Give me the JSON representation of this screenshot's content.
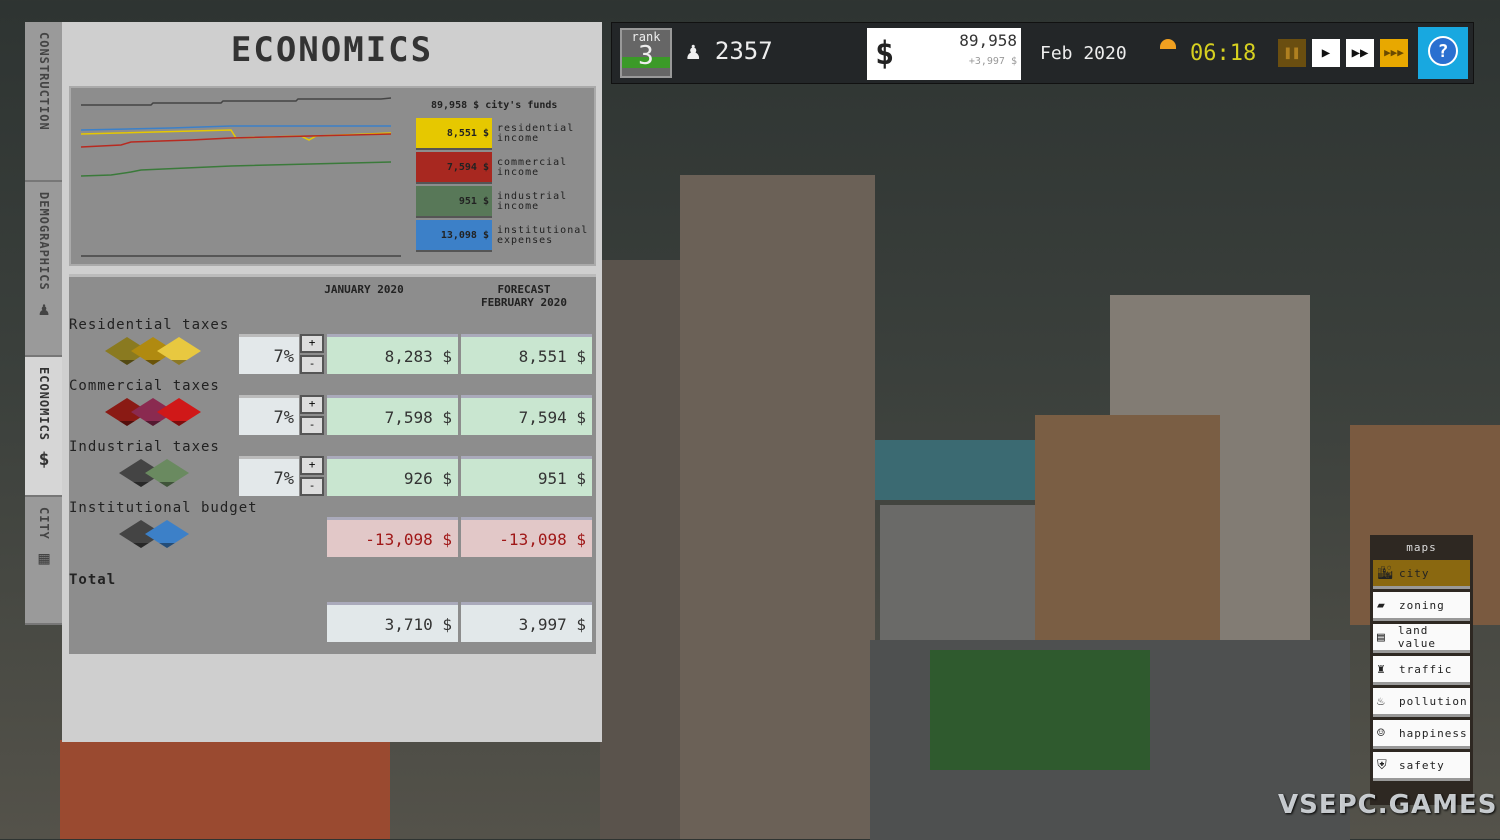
{
  "sidebar_tabs": [
    {
      "label": "CONSTRUCTION",
      "icon": "construction-icon"
    },
    {
      "label": "DEMOGRAPHICS",
      "icon": "person-icon",
      "glyph": "♟"
    },
    {
      "label": "ECONOMICS",
      "icon": "dollar-icon",
      "glyph": "$",
      "active": true
    },
    {
      "label": "CITY",
      "icon": "building-icon",
      "glyph": "▦"
    }
  ],
  "panel": {
    "title": "ECONOMICS",
    "legend": {
      "funds_value": "89,958 $",
      "funds_label": "city's funds",
      "items": [
        {
          "value": "8,551 $",
          "label1": "residential",
          "label2": "income",
          "color": "#e6c800"
        },
        {
          "value": "7,594 $",
          "label1": "commercial",
          "label2": "income",
          "color": "#a82820"
        },
        {
          "value": "951 $",
          "label1": "industrial",
          "label2": "income",
          "color": "#587858"
        },
        {
          "value": "13,098 $",
          "label1": "institutional",
          "label2": "expenses",
          "color": "#3c80c8"
        }
      ]
    },
    "table": {
      "col1": "JANUARY 2020",
      "col2a": "FORECAST",
      "col2b": "FEBRUARY 2020",
      "rows": [
        {
          "label": "Residential taxes",
          "rate": "7%",
          "current": "8,283 $",
          "forecast": "8,551 $",
          "tiles": [
            "#8a7a20",
            "#b08a10",
            "#e8c840"
          ]
        },
        {
          "label": "Commercial taxes",
          "rate": "7%",
          "current": "7,598 $",
          "forecast": "7,594 $",
          "tiles": [
            "#8a1a14",
            "#8a2a50",
            "#d01818"
          ]
        },
        {
          "label": "Industrial taxes",
          "rate": "7%",
          "current": "926 $",
          "forecast": "951 $",
          "tiles": [
            "#444",
            "#6a8a60"
          ]
        },
        {
          "label": "Institutional budget",
          "current": "-13,098 $",
          "forecast": "-13,098 $",
          "tiles": [
            "#444",
            "#3c80c8"
          ]
        }
      ],
      "total_label": "Total",
      "total_current": "3,710 $",
      "total_forecast": "3,997 $",
      "plus": "+",
      "minus": "-"
    }
  },
  "topbar": {
    "rank_label": "rank",
    "rank": "3",
    "population": "2357",
    "funds": "89,958",
    "funds_delta": "+3,997 $",
    "currency_symbol": "$",
    "date": "Feb 2020",
    "time": "06:18",
    "help": "?"
  },
  "maps": {
    "title": "maps",
    "items": [
      {
        "label": "city",
        "active": true
      },
      {
        "label": "zoning"
      },
      {
        "label": "land value"
      },
      {
        "label": "traffic"
      },
      {
        "label": "pollution"
      },
      {
        "label": "happiness"
      },
      {
        "label": "safety"
      }
    ]
  },
  "watermark": "VSEPC.GAMES"
}
